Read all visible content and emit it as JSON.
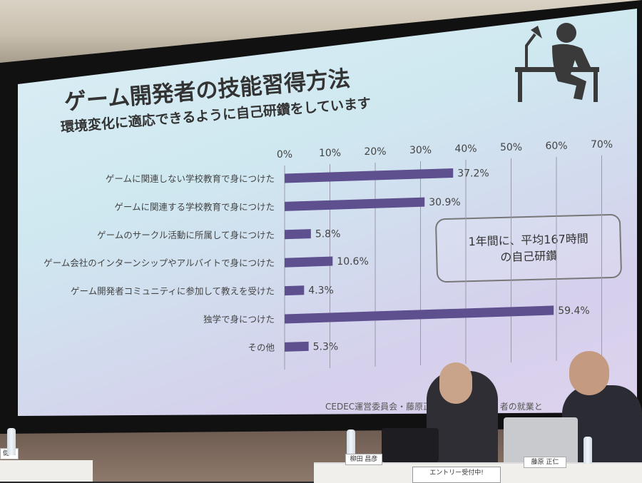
{
  "slide": {
    "title": "ゲーム開発者の技能習得方法",
    "subtitle": "環境変化に適応できるように自己研鑽をしています",
    "callout_line1": "1年間に、平均167時間",
    "callout_line2": "の自己研鑽",
    "footer": "CEDEC運営委員会・藤原正仁　　ゲーム　　者の就業と",
    "icon": "person-at-desk-with-lamp-icon"
  },
  "chart_data": {
    "type": "bar",
    "orientation": "horizontal",
    "categories": [
      "ゲームに関連しない学校教育で身につけた",
      "ゲームに関連する学校教育で身につけた",
      "ゲームのサークル活動に所属して身につけた",
      "ゲーム会社のインターンシップやアルバイトで身につけた",
      "ゲーム開発者コミュニティに参加して教えを受けた",
      "独学で身につけた",
      "その他"
    ],
    "values": [
      37.2,
      30.9,
      5.8,
      10.6,
      4.3,
      59.4,
      5.3
    ],
    "value_labels": [
      "37.2%",
      "30.9%",
      "5.8%",
      "10.6%",
      "4.3%",
      "59.4%",
      "5.3%"
    ],
    "xticks": [
      "0%",
      "10%",
      "20%",
      "30%",
      "40%",
      "50%",
      "60%",
      "70%"
    ],
    "xlim": [
      0,
      70
    ],
    "grid": true,
    "bar_color": "#5e4f8e"
  },
  "stage": {
    "nameplate_left": "健二",
    "nameplate_mid": "柳田 昌彦",
    "nameplate_right": "藤原 正仁",
    "entry_sign": "エントリー受付中!"
  }
}
